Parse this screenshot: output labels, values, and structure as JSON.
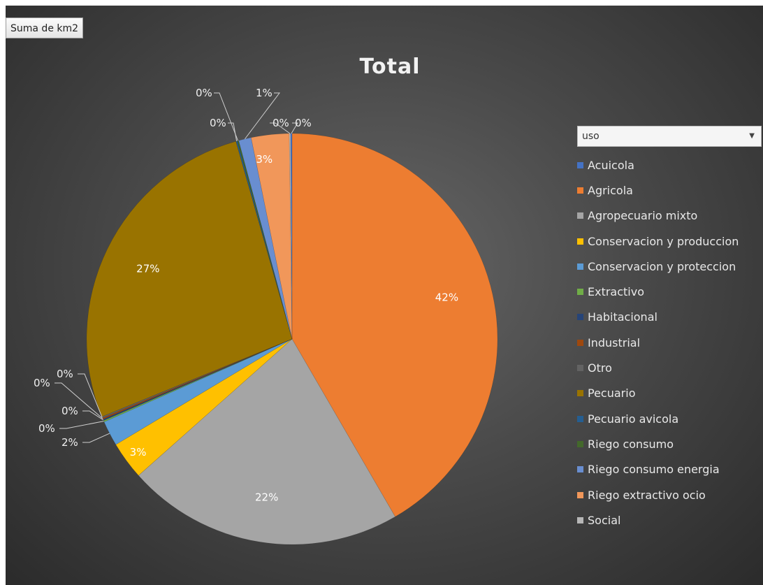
{
  "field_button": {
    "label": "Suma de km2"
  },
  "legend_filter": {
    "label": "uso",
    "arrow": "▼"
  },
  "chart_data": {
    "type": "pie",
    "title": "Total",
    "legend_position": "right",
    "slices": [
      {
        "name": "Agricola",
        "value": 42,
        "label": "42%",
        "color": "#ED7D31"
      },
      {
        "name": "Agropecuario mixto",
        "value": 22,
        "label": "22%",
        "color": "#A5A5A5"
      },
      {
        "name": "Conservacion y produccion",
        "value": 3,
        "label": "3%",
        "color": "#FFC000"
      },
      {
        "name": "Conservacion y proteccion",
        "value": 2,
        "label": "2%",
        "color": "#5B9BD5"
      },
      {
        "name": "Extractivo",
        "value": 0,
        "label": "0%",
        "color": "#70AD47"
      },
      {
        "name": "Habitacional",
        "value": 0,
        "label": "0%",
        "color": "#264478"
      },
      {
        "name": "Industrial",
        "value": 0,
        "label": "0%",
        "color": "#9E480E"
      },
      {
        "name": "Otro",
        "value": 0,
        "label": "0%",
        "color": "#636363"
      },
      {
        "name": "Pecuario",
        "value": 27,
        "label": "27%",
        "color": "#997300"
      },
      {
        "name": "Pecuario avicola",
        "value": 0,
        "label": "0%",
        "color": "#255E91"
      },
      {
        "name": "Riego consumo",
        "value": 0,
        "label": "0%",
        "color": "#43682B"
      },
      {
        "name": "Riego consumo energia",
        "value": 1,
        "label": "1%",
        "color": "#698ED0"
      },
      {
        "name": "Riego extractivo ocio",
        "value": 3,
        "label": "3%",
        "color": "#F1975A"
      },
      {
        "name": "Social",
        "value": 0,
        "label": "0%",
        "color": "#B7B7B7"
      },
      {
        "name": "Acuicola",
        "value": 0,
        "label": "0%",
        "color": "#4472C4"
      }
    ],
    "legend": [
      {
        "name": "Acuicola",
        "color": "#4472C4"
      },
      {
        "name": "Agricola",
        "color": "#ED7D31"
      },
      {
        "name": "Agropecuario mixto",
        "color": "#A5A5A5"
      },
      {
        "name": "Conservacion y produccion",
        "color": "#FFC000"
      },
      {
        "name": "Conservacion y proteccion",
        "color": "#5B9BD5"
      },
      {
        "name": "Extractivo",
        "color": "#70AD47"
      },
      {
        "name": "Habitacional",
        "color": "#264478"
      },
      {
        "name": "Industrial",
        "color": "#9E480E"
      },
      {
        "name": "Otro",
        "color": "#636363"
      },
      {
        "name": "Pecuario",
        "color": "#997300"
      },
      {
        "name": "Pecuario avicola",
        "color": "#255E91"
      },
      {
        "name": "Riego consumo",
        "color": "#43682B"
      },
      {
        "name": "Riego consumo energia",
        "color": "#698ED0"
      },
      {
        "name": "Riego extractivo ocio",
        "color": "#F1975A"
      },
      {
        "name": "Social",
        "color": "#B7B7B7"
      }
    ]
  }
}
